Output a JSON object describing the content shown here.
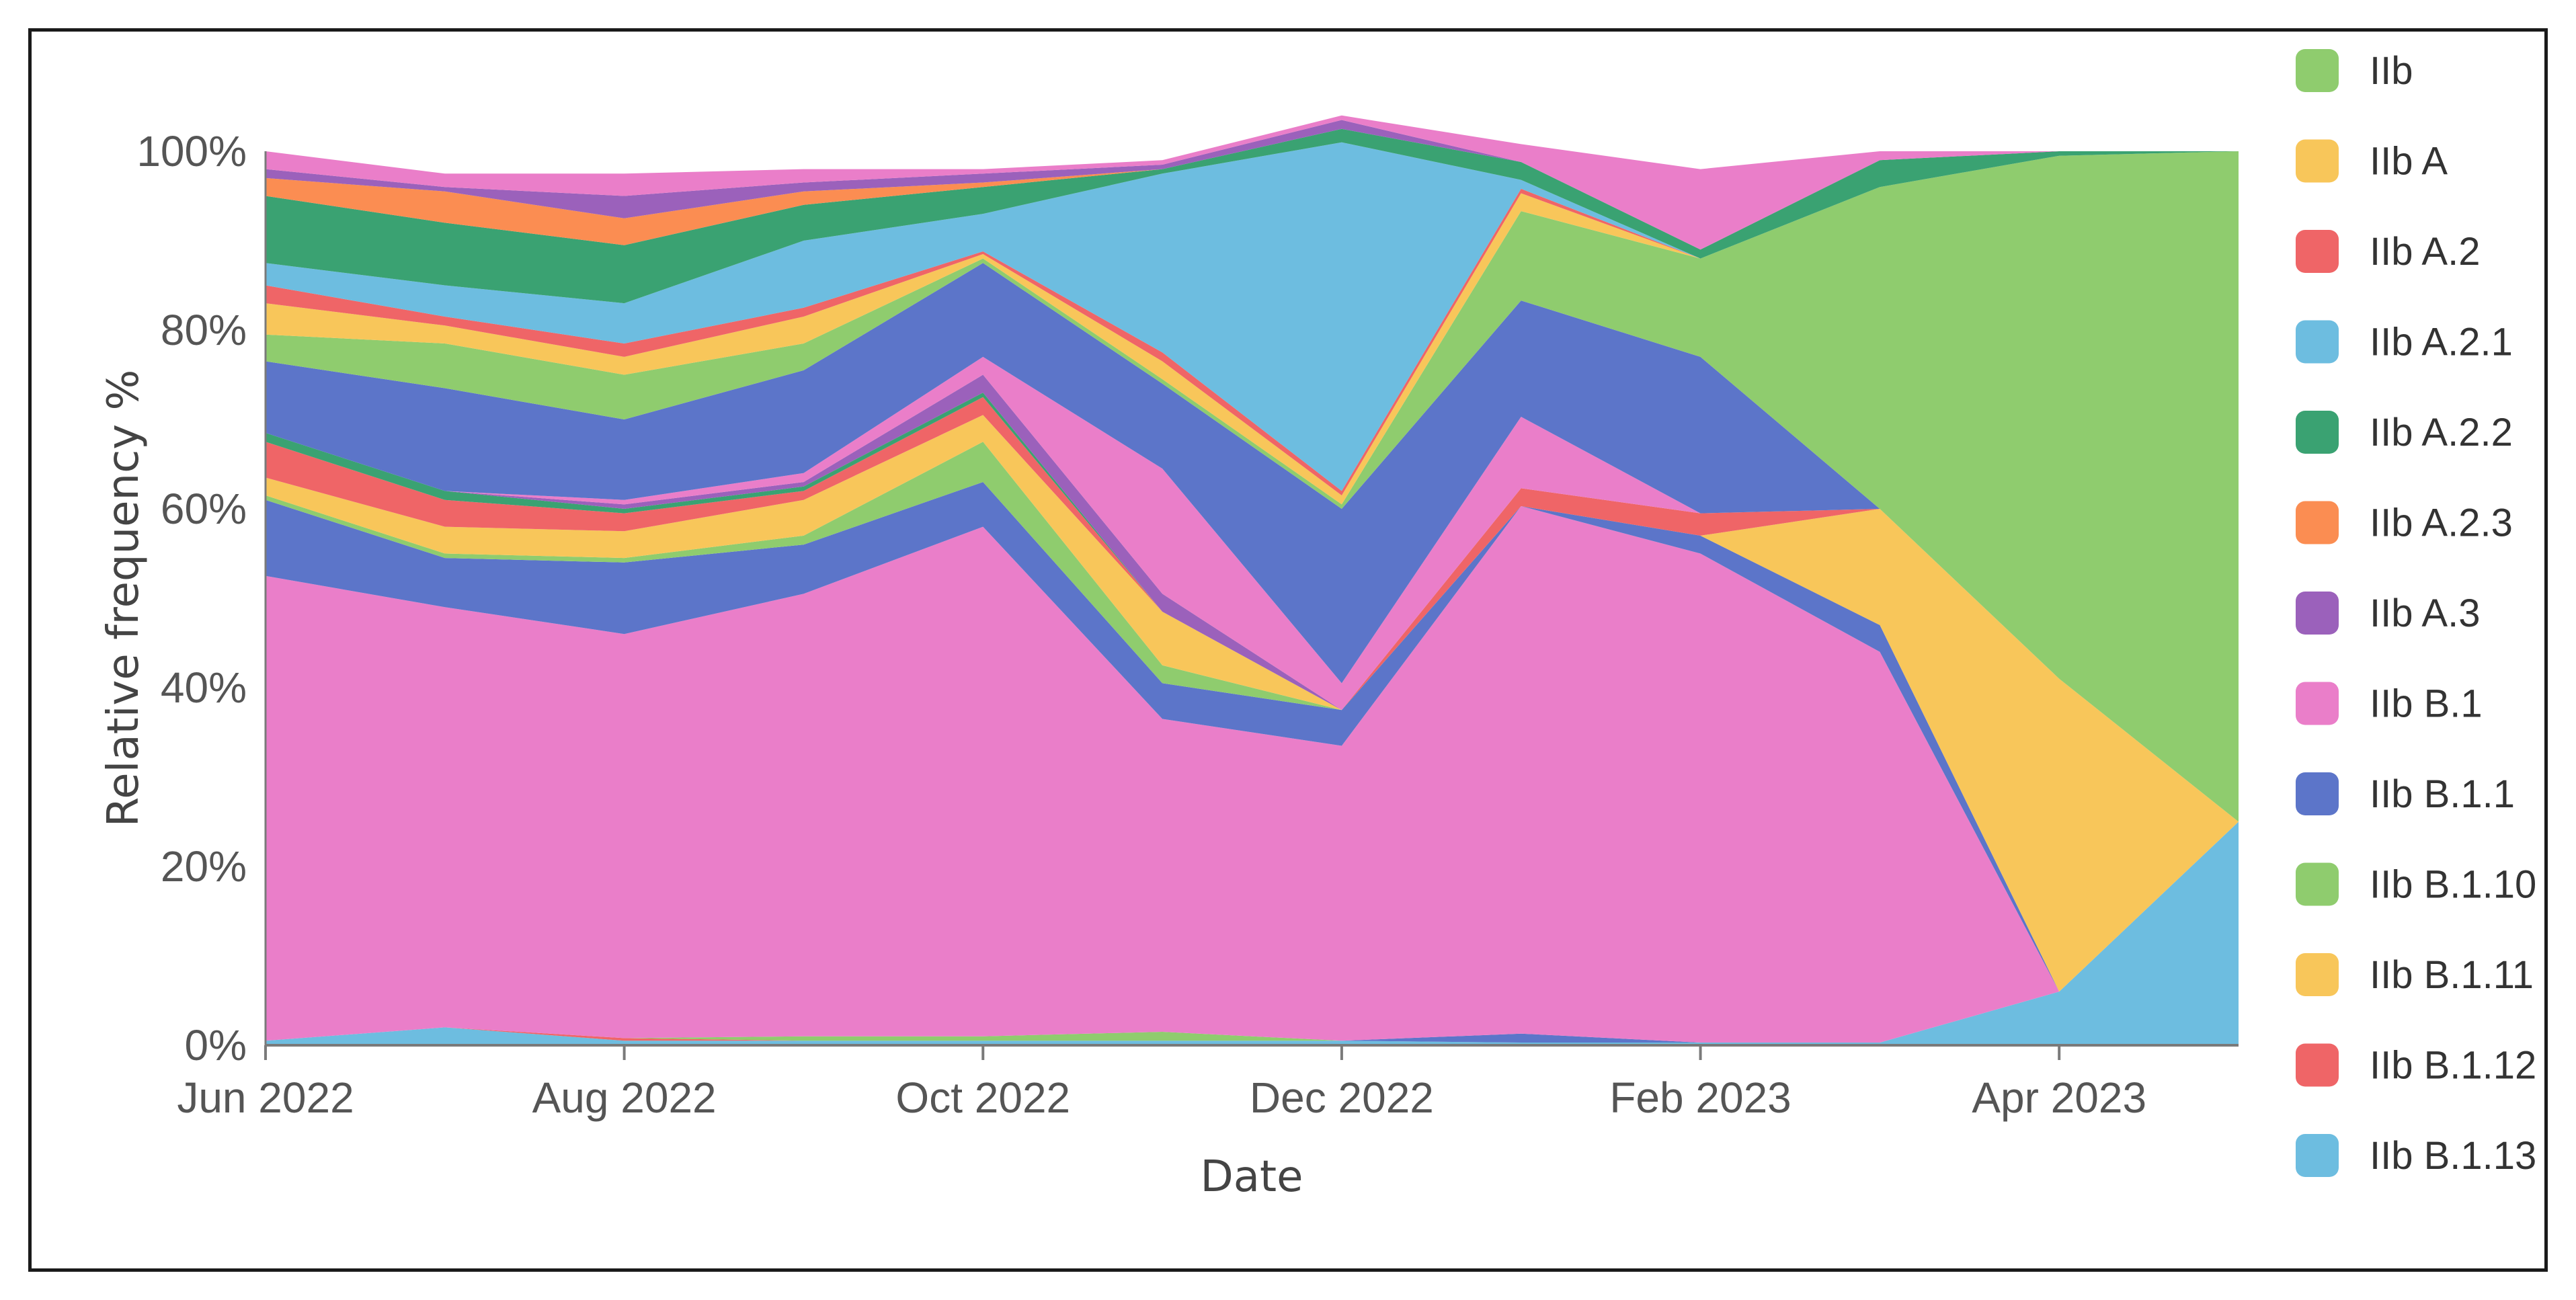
{
  "chart_data": {
    "type": "area",
    "stacked": true,
    "normalized": true,
    "title": "",
    "xlabel": "Date",
    "ylabel": "Relative frequency %",
    "x": [
      "2022-06",
      "2022-07",
      "2022-08",
      "2022-09",
      "2022-10",
      "2022-11",
      "2022-12",
      "2023-01",
      "2023-02",
      "2023-03",
      "2023-04",
      "2023-05"
    ],
    "x_tick_labels": [
      "Jun 2022",
      "Aug 2022",
      "Oct 2022",
      "Dec 2022",
      "Feb 2023",
      "Apr 2023"
    ],
    "y_tick_labels": [
      "0%",
      "20%",
      "40%",
      "60%",
      "80%",
      "100%"
    ],
    "ylim": [
      0,
      100
    ],
    "grid": false,
    "legend_position": "right",
    "legend_order": [
      "IIb",
      "IIb A",
      "IIb A.2",
      "IIb A.2.1",
      "IIb A.2.2",
      "IIb A.2.3",
      "IIb A.3",
      "IIb B.1",
      "IIb B.1.1",
      "IIb B.1.10",
      "IIb B.1.11",
      "IIb B.1.12",
      "IIb B.1.13"
    ],
    "series": [
      {
        "name": "IIb B.1.13",
        "color": "#6dbde0",
        "values": [
          0.5,
          2,
          0.5,
          0.5,
          0.5,
          0.5,
          0.5,
          0.3,
          0.3,
          0.3,
          6,
          25
        ]
      },
      {
        "name": "IIb B.1.12",
        "color": "#ef6567",
        "values": [
          0,
          0,
          0.3,
          0,
          0,
          0,
          0,
          0,
          0,
          0,
          0,
          0
        ]
      },
      {
        "name": "IIb B.1.10",
        "color": "#8fcc6e",
        "values": [
          0,
          0,
          0,
          0.5,
          0.5,
          1,
          0,
          0,
          0,
          0,
          0,
          0
        ]
      },
      {
        "name": "IIb B.1.1",
        "color": "#5c75c9",
        "values": [
          0,
          0,
          0,
          0,
          0,
          0,
          0,
          1,
          0,
          0,
          0,
          0
        ]
      },
      {
        "name": "IIb B.1",
        "color": "#ea7ec9",
        "values": [
          52,
          47,
          45.2,
          49.5,
          57,
          35,
          33,
          59,
          54.7,
          43.7,
          0,
          0
        ]
      },
      {
        "name": "IIb B.1.1",
        "color": "#5c75c9",
        "values": [
          8.5,
          5.5,
          8,
          5.5,
          5,
          4,
          4,
          0,
          2,
          3,
          0,
          0
        ]
      },
      {
        "name": "IIb B.1.10",
        "color": "#8fcc6e",
        "values": [
          0.5,
          0.5,
          0.5,
          1,
          4.5,
          2,
          0,
          0,
          0,
          0,
          0,
          0
        ]
      },
      {
        "name": "IIb B.1.11",
        "color": "#f8c65a",
        "values": [
          2,
          3,
          3,
          4,
          3,
          6,
          0,
          0,
          0,
          13,
          35,
          0
        ]
      },
      {
        "name": "IIb B.1.12",
        "color": "#ef6567",
        "values": [
          4,
          3,
          2,
          1,
          2,
          0,
          0,
          2,
          2.5,
          0,
          0,
          0
        ]
      },
      {
        "name": "IIb A.2.2",
        "color": "#3aa272",
        "values": [
          1,
          1,
          0.5,
          0.5,
          0.5,
          0,
          0,
          0,
          0,
          0,
          0,
          0
        ]
      },
      {
        "name": "IIb A.3",
        "color": "#9b61bb",
        "values": [
          0,
          0,
          0.5,
          0.5,
          2,
          2,
          0,
          0,
          0,
          0,
          0,
          0
        ]
      },
      {
        "name": "IIb B.1",
        "color": "#ea7ec9",
        "values": [
          0,
          0,
          0.5,
          1,
          2,
          14,
          3,
          8,
          0,
          0,
          0,
          0
        ]
      },
      {
        "name": "IIb B.1.1",
        "color": "#5c75c9",
        "values": [
          8,
          11.5,
          9,
          11.5,
          10.5,
          9.5,
          19.5,
          13,
          17.5,
          0,
          0,
          0
        ]
      },
      {
        "name": "IIb",
        "color": "#8fcc6e",
        "values": [
          3,
          5,
          5,
          3,
          0.5,
          0.5,
          0.5,
          10,
          11,
          36,
          58.5,
          75
        ]
      },
      {
        "name": "IIb A",
        "color": "#f8c65a",
        "values": [
          3.5,
          2,
          2,
          3,
          0.5,
          2,
          1,
          2,
          0,
          0,
          0,
          0
        ]
      },
      {
        "name": "IIb A.2",
        "color": "#ef6567",
        "values": [
          2,
          1,
          1.5,
          1,
          0.3,
          1,
          0.5,
          0.5,
          0,
          0,
          0,
          0
        ]
      },
      {
        "name": "IIb A.2.1",
        "color": "#6dbde0",
        "values": [
          2.5,
          3.5,
          4.5,
          7.5,
          4.2,
          20,
          39,
          1,
          0,
          0,
          0,
          0
        ]
      },
      {
        "name": "IIb A.2.2",
        "color": "#3aa272",
        "values": [
          7.5,
          7,
          6.5,
          4,
          3,
          0.5,
          1.5,
          2,
          1,
          3,
          0.5,
          0
        ]
      },
      {
        "name": "IIb A.2.3",
        "color": "#fb8d52",
        "values": [
          2,
          3.5,
          3,
          1.5,
          0.5,
          0,
          0,
          0,
          0,
          0,
          0,
          0
        ]
      },
      {
        "name": "IIb A.3",
        "color": "#9b61bb",
        "values": [
          1,
          0.5,
          2.5,
          1,
          1,
          0.5,
          1,
          0,
          0,
          0,
          0,
          0
        ]
      },
      {
        "name": "IIb B.1",
        "color": "#ea7ec9",
        "values": [
          2,
          1.5,
          2.5,
          1.5,
          0.5,
          0.5,
          0.5,
          2,
          9,
          1,
          0,
          0
        ]
      }
    ]
  },
  "legend": [
    {
      "label": "IIb",
      "color": "#8fcc6e"
    },
    {
      "label": "IIb A",
      "color": "#f8c65a"
    },
    {
      "label": "IIb A.2",
      "color": "#ef6567"
    },
    {
      "label": "IIb A.2.1",
      "color": "#6dbde0"
    },
    {
      "label": "IIb A.2.2",
      "color": "#3aa272"
    },
    {
      "label": "IIb A.2.3",
      "color": "#fb8d52"
    },
    {
      "label": "IIb A.3",
      "color": "#9b61bb"
    },
    {
      "label": "IIb B.1",
      "color": "#ea7ec9"
    },
    {
      "label": "IIb B.1.1",
      "color": "#5c75c9"
    },
    {
      "label": "IIb B.1.10",
      "color": "#8fcc6e"
    },
    {
      "label": "IIb B.1.11",
      "color": "#f8c65a"
    },
    {
      "label": "IIb B.1.12",
      "color": "#ef6567"
    },
    {
      "label": "IIb B.1.13",
      "color": "#6dbde0"
    }
  ]
}
